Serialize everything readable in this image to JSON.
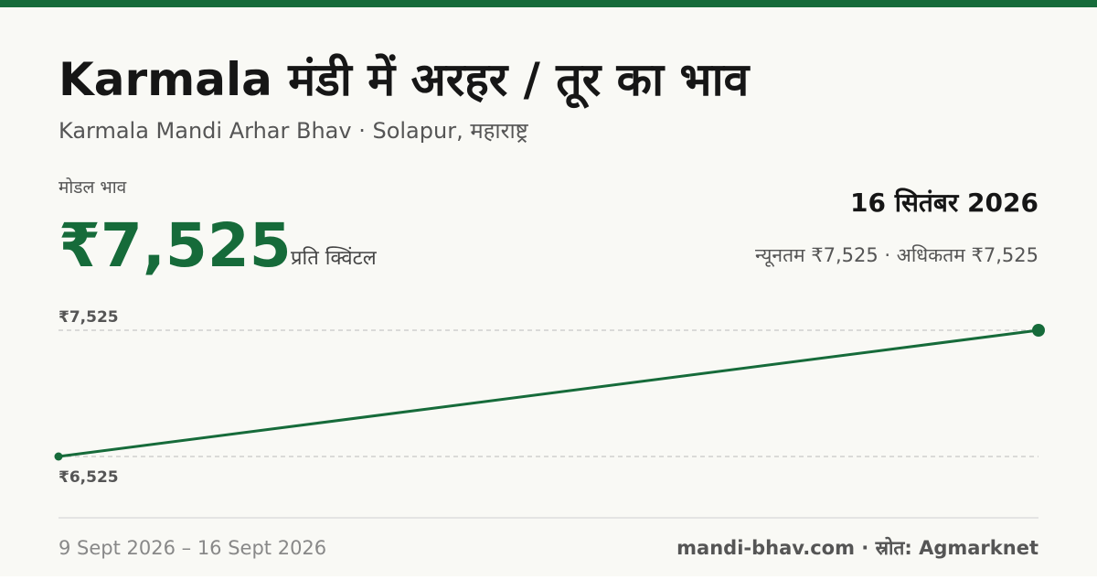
{
  "header": {
    "title": "Karmala मंडी में अरहर / तूर का भाव",
    "subtitle": "Karmala Mandi Arhar Bhav · Solapur, महाराष्ट्र"
  },
  "price": {
    "label": "मोडल भाव",
    "value": "₹7,525",
    "unit": "प्रति क्विंटल",
    "date": "16 सितंबर 2026",
    "range": "न्यूनतम ₹7,525 · अधिकतम ₹7,525"
  },
  "footer": {
    "date_range": "9 Sept 2026 – 16 Sept 2026",
    "source": "mandi-bhav.com · स्रोत: Agmarknet"
  },
  "chart_data": {
    "type": "line",
    "values": [
      6525,
      7525
    ],
    "color": "#166b3a",
    "ylim": [
      6525,
      7525
    ],
    "yticks": [
      {
        "value": 7525,
        "label": "₹7,525"
      },
      {
        "value": 6525,
        "label": "₹6,525"
      }
    ],
    "grid": true
  }
}
